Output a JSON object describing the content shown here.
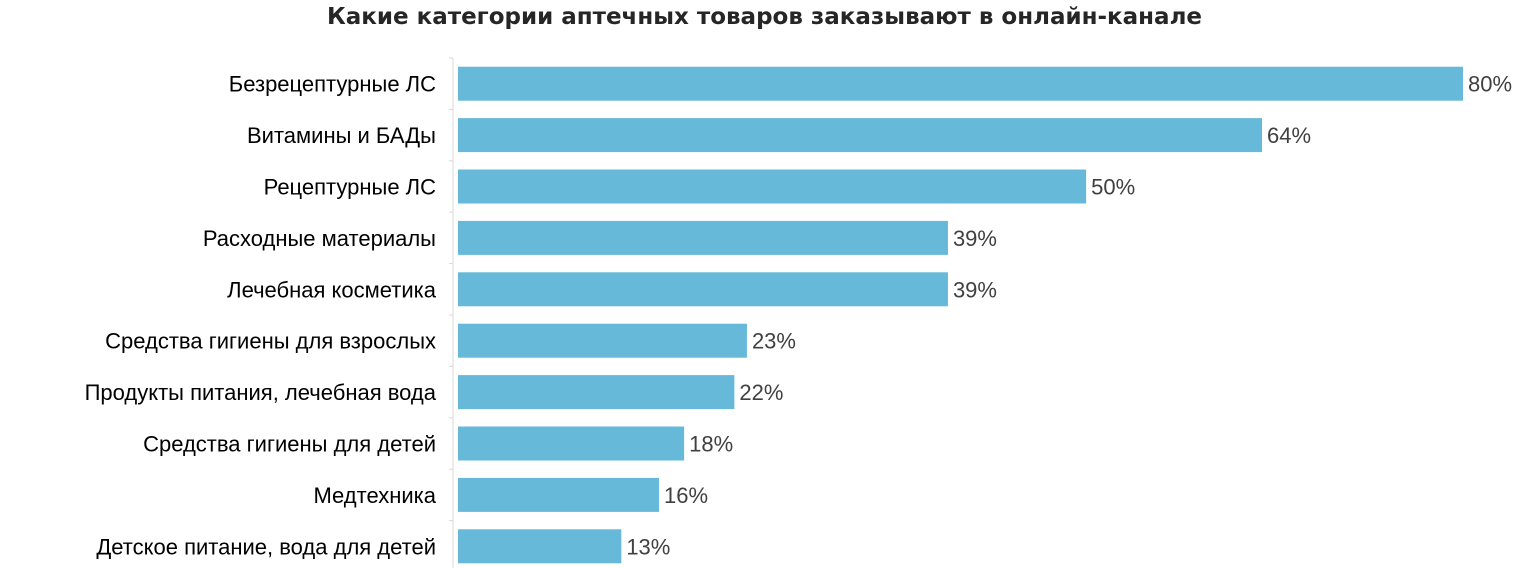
{
  "chart_data": {
    "type": "bar",
    "orientation": "horizontal",
    "title": "Какие категории аптечных товаров заказывают в онлайн-канале",
    "xlabel": "",
    "ylabel": "",
    "xlim": [
      0,
      80
    ],
    "grid": false,
    "categories": [
      "Безрецептурные ЛС",
      "Витамины и БАДы",
      "Рецептурные ЛС",
      "Расходные материалы",
      "Лечебная косметика",
      "Средства гигиены для взрослых",
      "Продукты питания, лечебная вода",
      "Средства гигиены для детей",
      "Медтехника",
      "Детское питание, вода для детей"
    ],
    "values": [
      80,
      64,
      50,
      39,
      39,
      23,
      22,
      18,
      16,
      13
    ],
    "value_labels": [
      "80%",
      "64%",
      "50%",
      "39%",
      "39%",
      "23%",
      "22%",
      "18%",
      "16%",
      "13%"
    ],
    "bar_color": "#67B9D9"
  }
}
